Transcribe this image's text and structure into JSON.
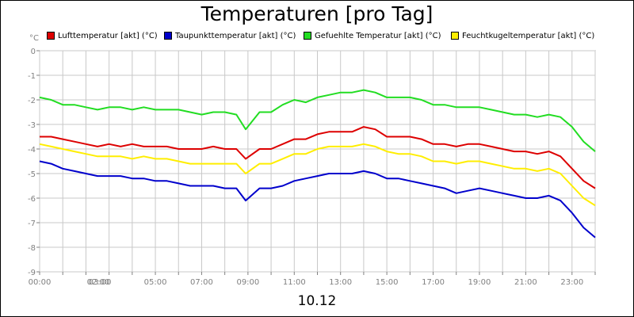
{
  "chart_data": {
    "type": "line",
    "title": "Temperaturen [pro Tag]",
    "xlabel": "10.12",
    "ylabel": "°C",
    "ylim": [
      -9,
      0
    ],
    "xlim": [
      0,
      24
    ],
    "grid": true,
    "legend_position": "top",
    "y_ticks": [
      0,
      -1,
      -2,
      -3,
      -4,
      -5,
      -6,
      -7,
      -8,
      -9
    ],
    "x_ticks": [
      {
        "pos": 0,
        "label": "00:00"
      },
      {
        "pos": 2,
        "label": "02:00"
      },
      {
        "pos": 3,
        "label": "03:00"
      },
      {
        "pos": 5,
        "label": "05:00"
      },
      {
        "pos": 7,
        "label": "07:00"
      },
      {
        "pos": 9,
        "label": "09:00"
      },
      {
        "pos": 11,
        "label": "11:00"
      },
      {
        "pos": 13,
        "label": "13:00"
      },
      {
        "pos": 15,
        "label": "15:00"
      },
      {
        "pos": 17,
        "label": "17:00"
      },
      {
        "pos": 19,
        "label": "19:00"
      },
      {
        "pos": 21,
        "label": "21:00"
      },
      {
        "pos": 23,
        "label": "23:00"
      }
    ],
    "x": [
      0,
      0.5,
      1,
      1.5,
      2,
      2.5,
      3,
      3.5,
      4,
      4.5,
      5,
      5.5,
      6,
      6.5,
      7,
      7.5,
      8,
      8.5,
      8.9,
      9.5,
      10,
      10.5,
      11,
      11.5,
      12,
      12.5,
      13,
      13.5,
      14,
      14.5,
      15,
      15.5,
      16,
      16.5,
      17,
      17.5,
      18,
      18.5,
      19,
      19.5,
      20,
      20.5,
      21,
      21.5,
      22,
      22.5,
      23,
      23.5,
      24
    ],
    "series": [
      {
        "name": "Lufttemperatur [akt] (°C)",
        "color": "#dd0000",
        "values": [
          -3.5,
          -3.5,
          -3.6,
          -3.7,
          -3.8,
          -3.9,
          -3.8,
          -3.9,
          -3.8,
          -3.9,
          -3.9,
          -3.9,
          -4.0,
          -4.0,
          -4.0,
          -3.9,
          -4.0,
          -4.0,
          -4.4,
          -4.0,
          -4.0,
          -3.8,
          -3.6,
          -3.6,
          -3.4,
          -3.3,
          -3.3,
          -3.3,
          -3.1,
          -3.2,
          -3.5,
          -3.5,
          -3.5,
          -3.6,
          -3.8,
          -3.8,
          -3.9,
          -3.8,
          -3.8,
          -3.9,
          -4.0,
          -4.1,
          -4.1,
          -4.2,
          -4.1,
          -4.3,
          -4.8,
          -5.3,
          -5.6
        ]
      },
      {
        "name": "Taupunkttemperatur [akt] (°C)",
        "color": "#0000cc",
        "values": [
          -4.5,
          -4.6,
          -4.8,
          -4.9,
          -5.0,
          -5.1,
          -5.1,
          -5.1,
          -5.2,
          -5.2,
          -5.3,
          -5.3,
          -5.4,
          -5.5,
          -5.5,
          -5.5,
          -5.6,
          -5.6,
          -6.1,
          -5.6,
          -5.6,
          -5.5,
          -5.3,
          -5.2,
          -5.1,
          -5.0,
          -5.0,
          -5.0,
          -4.9,
          -5.0,
          -5.2,
          -5.2,
          -5.3,
          -5.4,
          -5.5,
          -5.6,
          -5.8,
          -5.7,
          -5.6,
          -5.7,
          -5.8,
          -5.9,
          -6.0,
          -6.0,
          -5.9,
          -6.1,
          -6.6,
          -7.2,
          -7.6
        ]
      },
      {
        "name": "Gefuehlte Temperatur [akt] (°C)",
        "color": "#22dd22",
        "values": [
          -1.9,
          -2.0,
          -2.2,
          -2.2,
          -2.3,
          -2.4,
          -2.3,
          -2.3,
          -2.4,
          -2.3,
          -2.4,
          -2.4,
          -2.4,
          -2.5,
          -2.6,
          -2.5,
          -2.5,
          -2.6,
          -3.2,
          -2.5,
          -2.5,
          -2.2,
          -2.0,
          -2.1,
          -1.9,
          -1.8,
          -1.7,
          -1.7,
          -1.6,
          -1.7,
          -1.9,
          -1.9,
          -1.9,
          -2.0,
          -2.2,
          -2.2,
          -2.3,
          -2.3,
          -2.3,
          -2.4,
          -2.5,
          -2.6,
          -2.6,
          -2.7,
          -2.6,
          -2.7,
          -3.1,
          -3.7,
          -4.1
        ]
      },
      {
        "name": "Feuchtkugeltemperatur [akt] (°C)",
        "color": "#ffee00",
        "values": [
          -3.8,
          -3.9,
          -4.0,
          -4.1,
          -4.2,
          -4.3,
          -4.3,
          -4.3,
          -4.4,
          -4.3,
          -4.4,
          -4.4,
          -4.5,
          -4.6,
          -4.6,
          -4.6,
          -4.6,
          -4.6,
          -5.0,
          -4.6,
          -4.6,
          -4.4,
          -4.2,
          -4.2,
          -4.0,
          -3.9,
          -3.9,
          -3.9,
          -3.8,
          -3.9,
          -4.1,
          -4.2,
          -4.2,
          -4.3,
          -4.5,
          -4.5,
          -4.6,
          -4.5,
          -4.5,
          -4.6,
          -4.7,
          -4.8,
          -4.8,
          -4.9,
          -4.8,
          -5.0,
          -5.5,
          -6.0,
          -6.3
        ]
      }
    ]
  }
}
